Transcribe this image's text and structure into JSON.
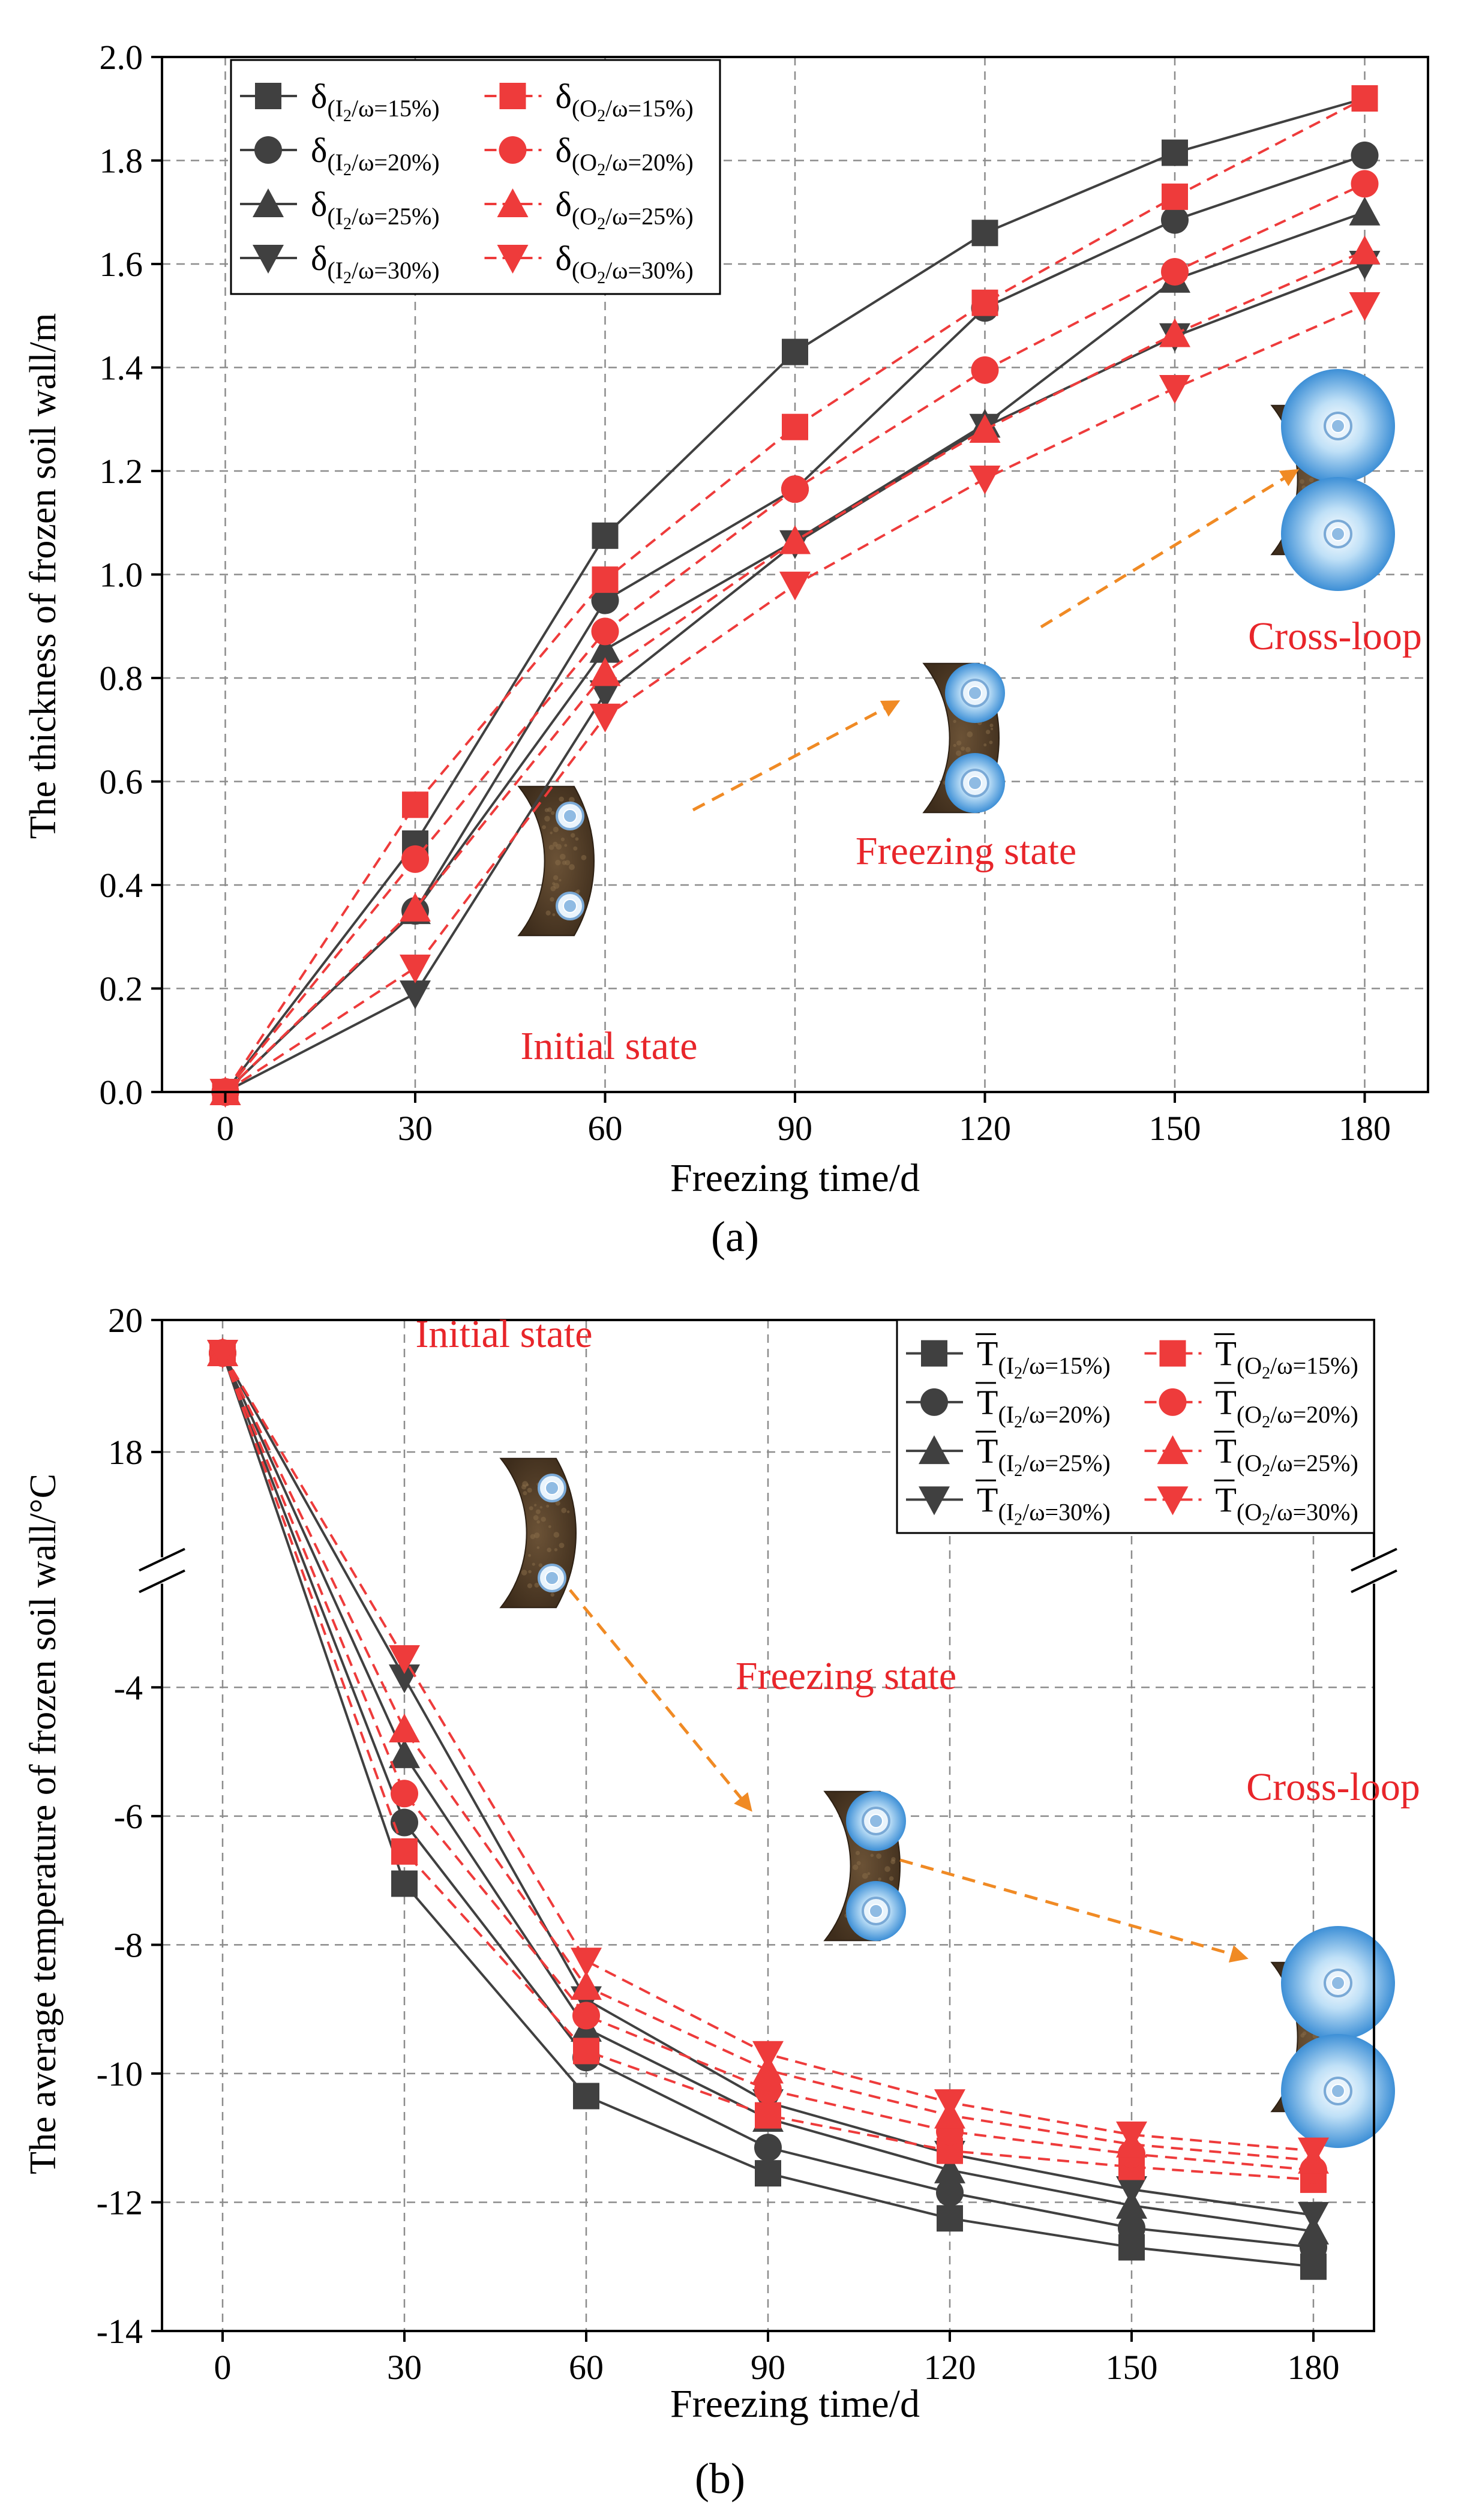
{
  "colors": {
    "ios": "#404040",
    "oos": "#ee3b3b",
    "annot": "#e8252a",
    "arrow": "#f08a24",
    "grid": "#8c8c8c"
  },
  "chart_data": [
    {
      "id": "a",
      "type": "line",
      "caption": "(a)",
      "xlabel": "Freezing time/d",
      "ylabel": "The thickness of frozen soil wall/m",
      "x": [
        0,
        30,
        60,
        90,
        120,
        150,
        180
      ],
      "xlim": [
        -10,
        190
      ],
      "ylim": [
        0.0,
        2.0
      ],
      "xticks": [
        0,
        30,
        60,
        90,
        120,
        150,
        180
      ],
      "xtick_labels": [
        "0",
        "30",
        "60",
        "90",
        "120",
        "150",
        "180"
      ],
      "yticks": [
        0.0,
        0.2,
        0.4,
        0.6,
        0.8,
        1.0,
        1.2,
        1.4,
        1.6,
        1.8,
        2.0
      ],
      "ytick_labels": [
        "0.0",
        "0.2",
        "0.4",
        "0.6",
        "0.8",
        "1.0",
        "1.2",
        "1.4",
        "1.6",
        "1.8",
        "2.0"
      ],
      "grid": true,
      "legend_position": "top-left",
      "series": [
        {
          "name": "δ(I2/ω=15%)",
          "sym": "δ",
          "sub": "(I",
          "sub2": "2",
          "sub3": "/ω=15%)",
          "group": "I",
          "marker": "square",
          "values": [
            0.0,
            0.48,
            1.075,
            1.43,
            1.66,
            1.815,
            1.92
          ]
        },
        {
          "name": "δ(I2/ω=20%)",
          "sym": "δ",
          "sub": "(I",
          "sub2": "2",
          "sub3": "/ω=20%)",
          "group": "I",
          "marker": "circle",
          "values": [
            0.0,
            0.35,
            0.95,
            1.165,
            1.515,
            1.685,
            1.81
          ]
        },
        {
          "name": "δ(I2/ω=25%)",
          "sym": "δ",
          "sub": "(I",
          "sub2": "2",
          "sub3": "/ω=25%)",
          "group": "I",
          "marker": "triangle-up",
          "values": [
            0.0,
            0.35,
            0.855,
            1.065,
            1.29,
            1.57,
            1.7
          ]
        },
        {
          "name": "δ(I2/ω=30%)",
          "sym": "δ",
          "sub": "(I",
          "sub2": "2",
          "sub3": "/ω=30%)",
          "group": "I",
          "marker": "triangle-down",
          "values": [
            0.0,
            0.19,
            0.77,
            1.06,
            1.285,
            1.46,
            1.6
          ]
        },
        {
          "name": "δ(O2/ω=15%)",
          "sym": "δ",
          "sub": "(O",
          "sub2": "2",
          "sub3": "/ω=15%)",
          "group": "O",
          "marker": "square",
          "values": [
            0.0,
            0.555,
            0.99,
            1.285,
            1.525,
            1.73,
            1.92
          ]
        },
        {
          "name": "δ(O2/ω=20%)",
          "sym": "δ",
          "sub": "(O",
          "sub2": "2",
          "sub3": "/ω=20%)",
          "group": "O",
          "marker": "circle",
          "values": [
            0.0,
            0.45,
            0.89,
            1.165,
            1.395,
            1.585,
            1.755
          ]
        },
        {
          "name": "δ(O2/ω=25%)",
          "sym": "δ",
          "sub": "(O",
          "sub2": "2",
          "sub3": "/ω=25%)",
          "group": "O",
          "marker": "triangle-up",
          "values": [
            0.0,
            0.355,
            0.81,
            1.065,
            1.28,
            1.465,
            1.625
          ]
        },
        {
          "name": "δ(O2/ω=30%)",
          "sym": "δ",
          "sub": "(O",
          "sub2": "2",
          "sub3": "/ω=30%)",
          "group": "O",
          "marker": "triangle-down",
          "values": [
            0.0,
            0.24,
            0.725,
            0.98,
            1.185,
            1.36,
            1.52
          ]
        }
      ],
      "annotations": [
        {
          "text": "Initial state",
          "holes": 1,
          "arrow_to_next": true
        },
        {
          "text": "Freezing state",
          "holes": 2,
          "arrow_to_next": true
        },
        {
          "text": "Cross-loop",
          "holes": 3,
          "arrow_to_next": false
        }
      ]
    },
    {
      "id": "b",
      "type": "line",
      "caption": "(b)",
      "xlabel": "Freezing time/d",
      "ylabel": "The average temperature of frozen soil wall/°C",
      "x": [
        0,
        30,
        60,
        90,
        120,
        150,
        180
      ],
      "xlim": [
        -10,
        190
      ],
      "ylim": [
        -14,
        20
      ],
      "axis_break": {
        "lower_top": -3,
        "upper_bottom": 17
      },
      "xticks": [
        0,
        30,
        60,
        90,
        120,
        150,
        180
      ],
      "xtick_labels": [
        "0",
        "30",
        "60",
        "90",
        "120",
        "150",
        "180"
      ],
      "yticks": [
        -14,
        -12,
        -10,
        -8,
        -6,
        -4,
        18,
        20
      ],
      "ytick_labels": [
        "-14",
        "-12",
        "-10",
        "-8",
        "-6",
        "-4",
        "18",
        "20"
      ],
      "grid": true,
      "legend_position": "top-right",
      "series": [
        {
          "name": "T̄(I2/ω=15%)",
          "sym": "T",
          "sub": "(I",
          "sub2": "2",
          "sub3": "/ω=15%)",
          "group": "I",
          "marker": "square",
          "values": [
            19.5,
            -7.05,
            -10.35,
            -11.55,
            -12.25,
            -12.7,
            -13.0
          ]
        },
        {
          "name": "T̄(I2/ω=20%)",
          "sym": "T",
          "sub": "(I",
          "sub2": "2",
          "sub3": "/ω=20%)",
          "group": "I",
          "marker": "circle",
          "values": [
            19.5,
            -6.1,
            -9.75,
            -11.15,
            -11.85,
            -12.4,
            -12.7
          ]
        },
        {
          "name": "T̄(I2/ω=25%)",
          "sym": "T",
          "sub": "(I",
          "sub2": "2",
          "sub3": "/ω=25%)",
          "group": "I",
          "marker": "triangle-up",
          "values": [
            19.5,
            -5.05,
            -9.3,
            -10.7,
            -11.5,
            -12.05,
            -12.45
          ]
        },
        {
          "name": "T̄(I2/ω=30%)",
          "sym": "T",
          "sub": "(I",
          "sub2": "2",
          "sub3": "/ω=30%)",
          "group": "I",
          "marker": "triangle-down",
          "values": [
            19.5,
            -3.85,
            -8.85,
            -10.45,
            -11.25,
            -11.8,
            -12.2
          ]
        },
        {
          "name": "T̄(O2/ω=15%)",
          "sym": "T",
          "sub": "(O",
          "sub2": "2",
          "sub3": "/ω=15%)",
          "group": "O",
          "marker": "square",
          "values": [
            19.5,
            -6.55,
            -9.65,
            -10.65,
            -11.2,
            -11.45,
            -11.65
          ]
        },
        {
          "name": "T̄(O2/ω=20%)",
          "sym": "T",
          "sub": "(O",
          "sub2": "2",
          "sub3": "/ω=20%)",
          "group": "O",
          "marker": "circle",
          "values": [
            19.5,
            -5.65,
            -9.1,
            -10.25,
            -10.9,
            -11.25,
            -11.5
          ]
        },
        {
          "name": "T̄(O2/ω=25%)",
          "sym": "T",
          "sub": "(O",
          "sub2": "2",
          "sub3": "/ω=25%)",
          "group": "O",
          "marker": "triangle-up",
          "values": [
            19.5,
            -4.65,
            -8.65,
            -9.95,
            -10.65,
            -11.1,
            -11.35
          ]
        },
        {
          "name": "T̄(O2/ω=30%)",
          "sym": "T",
          "sub": "(O",
          "sub2": "2",
          "sub3": "/ω=30%)",
          "group": "O",
          "marker": "triangle-down",
          "values": [
            19.5,
            -3.55,
            -8.25,
            -9.7,
            -10.45,
            -10.95,
            -11.2
          ]
        }
      ],
      "annotations": [
        {
          "text": "Initial state",
          "holes": 1,
          "arrow_to_next": true
        },
        {
          "text": "Freezing state",
          "holes": 2,
          "arrow_to_next": true
        },
        {
          "text": "Cross-loop",
          "holes": 3,
          "arrow_to_next": false
        }
      ]
    }
  ]
}
